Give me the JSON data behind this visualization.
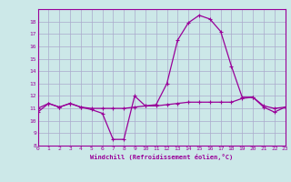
{
  "hours": [
    0,
    1,
    2,
    3,
    4,
    5,
    6,
    7,
    8,
    9,
    10,
    11,
    12,
    13,
    14,
    15,
    16,
    17,
    18,
    19,
    20,
    21,
    22,
    23
  ],
  "windchill": [
    10.7,
    11.4,
    11.1,
    11.4,
    11.1,
    10.9,
    10.6,
    8.5,
    8.5,
    12.0,
    11.2,
    11.3,
    13.0,
    16.5,
    17.9,
    18.5,
    18.2,
    17.2,
    14.4,
    11.9,
    11.9,
    11.1,
    10.7,
    11.1
  ],
  "temperature": [
    11.0,
    11.4,
    11.1,
    11.4,
    11.1,
    11.0,
    11.0,
    11.0,
    11.0,
    11.1,
    11.2,
    11.2,
    11.3,
    11.4,
    11.5,
    11.5,
    11.5,
    11.5,
    11.5,
    11.8,
    11.9,
    11.2,
    11.0,
    11.1
  ],
  "line_color": "#990099",
  "bg_color": "#cce8e8",
  "grid_color": "#aaaacc",
  "xlabel": "Windchill (Refroidissement éolien,°C)",
  "ylim": [
    8,
    19
  ],
  "xlim": [
    0,
    23
  ],
  "yticks": [
    8,
    9,
    10,
    11,
    12,
    13,
    14,
    15,
    16,
    17,
    18
  ],
  "xticks": [
    0,
    1,
    2,
    3,
    4,
    5,
    6,
    7,
    8,
    9,
    10,
    11,
    12,
    13,
    14,
    15,
    16,
    17,
    18,
    19,
    20,
    21,
    22,
    23
  ]
}
